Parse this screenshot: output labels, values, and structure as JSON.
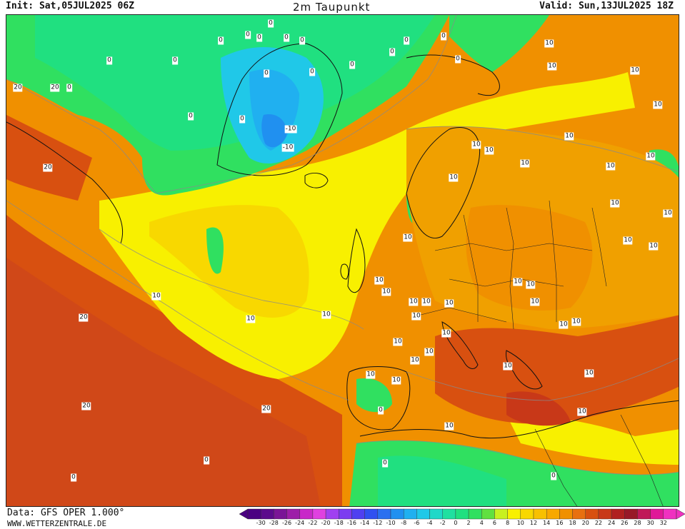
{
  "header": {
    "init": "Init: Sat,05JUL2025 06Z",
    "title": "2m Taupunkt",
    "valid": "Valid: Sun,13JUL2025 18Z"
  },
  "footer": {
    "data_source": "Data: GFS OPER 1.000°",
    "website": "WWW.WETTERZENTRALE.DE"
  },
  "legend": {
    "values": [
      "-30",
      "-28",
      "-26",
      "-24",
      "-22",
      "-20",
      "-18",
      "-16",
      "-14",
      "-12",
      "-10",
      "-8",
      "-6",
      "-4",
      "-2",
      "0",
      "2",
      "4",
      "6",
      "8",
      "10",
      "12",
      "14",
      "16",
      "18",
      "20",
      "22",
      "24",
      "26",
      "28",
      "30",
      "32"
    ],
    "colors": [
      "#4b0082",
      "#5c0a8c",
      "#7a1496",
      "#9d1ea8",
      "#c828c8",
      "#e040e0",
      "#a040f0",
      "#7c3cf0",
      "#5040f0",
      "#3050f0",
      "#2a70f0",
      "#2090f0",
      "#20b0f0",
      "#20c8e8",
      "#20d8c8",
      "#20e0a0",
      "#20e080",
      "#30e060",
      "#60e040",
      "#c8f020",
      "#f8f000",
      "#f8d800",
      "#f8c000",
      "#f8a800",
      "#f09000",
      "#e87010",
      "#d85010",
      "#c83818",
      "#b02020",
      "#981828",
      "#c01858",
      "#e01898",
      "#f030c0"
    ]
  },
  "contour_labels": [
    {
      "text": "0"
    },
    {
      "text": "0"
    },
    {
      "text": "0"
    },
    {
      "text": "0"
    },
    {
      "text": "0"
    },
    {
      "text": "0"
    },
    {
      "text": "0"
    },
    {
      "text": "0"
    },
    {
      "text": "0"
    },
    {
      "text": "0"
    },
    {
      "text": "0"
    },
    {
      "text": "0"
    },
    {
      "text": "0"
    },
    {
      "text": "0"
    },
    {
      "text": "0"
    },
    {
      "text": "0"
    },
    {
      "text": "0"
    },
    {
      "text": "0"
    },
    {
      "text": "-10"
    },
    {
      "text": "-10"
    },
    {
      "text": "10"
    },
    {
      "text": "10"
    },
    {
      "text": "10"
    },
    {
      "text": "10"
    },
    {
      "text": "10"
    },
    {
      "text": "10"
    },
    {
      "text": "10"
    },
    {
      "text": "10"
    },
    {
      "text": "10"
    },
    {
      "text": "10"
    },
    {
      "text": "10"
    },
    {
      "text": "10"
    },
    {
      "text": "10"
    },
    {
      "text": "10"
    },
    {
      "text": "10"
    },
    {
      "text": "10"
    },
    {
      "text": "10"
    },
    {
      "text": "10"
    },
    {
      "text": "10"
    },
    {
      "text": "10"
    },
    {
      "text": "10"
    },
    {
      "text": "10"
    },
    {
      "text": "10"
    },
    {
      "text": "10"
    },
    {
      "text": "10"
    },
    {
      "text": "10"
    },
    {
      "text": "10"
    },
    {
      "text": "10"
    },
    {
      "text": "10"
    },
    {
      "text": "10"
    },
    {
      "text": "10"
    },
    {
      "text": "10"
    },
    {
      "text": "10"
    },
    {
      "text": "10"
    },
    {
      "text": "10"
    },
    {
      "text": "10"
    },
    {
      "text": "10"
    },
    {
      "text": "10"
    },
    {
      "text": "10"
    },
    {
      "text": "10"
    },
    {
      "text": "20"
    },
    {
      "text": "20"
    },
    {
      "text": "20"
    },
    {
      "text": "20"
    },
    {
      "text": "20"
    },
    {
      "text": "20"
    },
    {
      "text": "0"
    },
    {
      "text": "0"
    },
    {
      "text": "0"
    },
    {
      "text": "0"
    },
    {
      "text": "0"
    }
  ]
}
